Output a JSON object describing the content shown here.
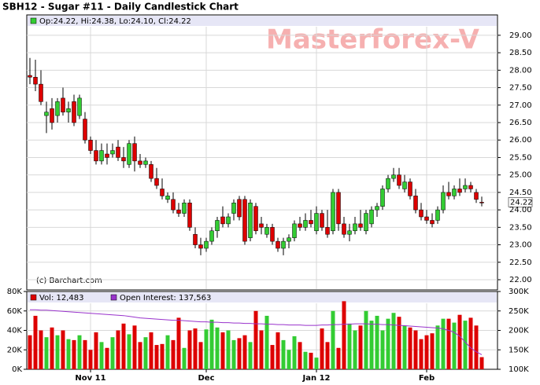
{
  "watermark": "Masterforex-V",
  "chart_data": [
    {
      "type": "candlestick",
      "title": "SBH12 - Sugar #11 - Daily Candlestick Chart",
      "ohlc_label": "Op:24.22, Hi:24.38, Lo:24.10, Cl:24.22",
      "source": "(c) Barchart.com",
      "up_color": "#33cc33",
      "down_color": "#dd0000",
      "last_price": 24.22,
      "ylim": [
        21.73,
        29.56
      ],
      "yticks": [
        {
          "value": 22,
          "label": "22.00"
        },
        {
          "value": 22.5,
          "label": "22.50"
        },
        {
          "value": 23,
          "label": "23.00"
        },
        {
          "value": 23.5,
          "label": "23.50"
        },
        {
          "value": 24,
          "label": "24.00"
        },
        {
          "value": 24.5,
          "label": "24.50"
        },
        {
          "value": 25,
          "label": "25.00"
        },
        {
          "value": 25.5,
          "label": "25.50"
        },
        {
          "value": 26,
          "label": "26.00"
        },
        {
          "value": 26.5,
          "label": "26.50"
        },
        {
          "value": 27,
          "label": "27.00"
        },
        {
          "value": 27.5,
          "label": "27.50"
        },
        {
          "value": 28,
          "label": "28.00"
        },
        {
          "value": 28.5,
          "label": "28.50"
        },
        {
          "value": 29,
          "label": "29.00"
        }
      ],
      "grid": true,
      "open": [
        27.85,
        27.8,
        27.6,
        26.7,
        26.9,
        26.7,
        27.2,
        26.8,
        27.1,
        26.7,
        26.6,
        26.0,
        25.7,
        25.4,
        25.6,
        25.6,
        25.8,
        25.5,
        25.3,
        25.9,
        25.4,
        25.3,
        25.3,
        24.9,
        24.6,
        24.3,
        24.3,
        24.0,
        23.9,
        24.2,
        23.3,
        23.0,
        22.9,
        23.1,
        23.4,
        23.8,
        23.6,
        23.9,
        24.3,
        24.3,
        23.2,
        24.1,
        23.6,
        23.3,
        23.5,
        23.1,
        22.9,
        23.1,
        23.2,
        23.6,
        23.5,
        23.7,
        23.4,
        23.9,
        23.5,
        23.4,
        24.5,
        23.6,
        23.3,
        23.4,
        23.6,
        23.4,
        23.6,
        24.0,
        24.1,
        24.6,
        24.9,
        25.0,
        24.6,
        24.8,
        24.4,
        24.0,
        23.8,
        23.7,
        23.7,
        24.0,
        24.5,
        24.4,
        24.6,
        24.6,
        24.7,
        24.5,
        24.22
      ],
      "high": [
        28.35,
        28.3,
        28.0,
        27.1,
        27.2,
        27.2,
        27.5,
        27.1,
        27.3,
        27.3,
        26.8,
        26.1,
        26.0,
        25.9,
        25.9,
        25.9,
        26.0,
        25.8,
        26.0,
        26.1,
        25.6,
        25.5,
        25.4,
        25.2,
        24.9,
        24.5,
        24.5,
        24.2,
        24.3,
        24.3,
        23.5,
        23.2,
        23.2,
        23.5,
        23.8,
        24.1,
        23.9,
        24.3,
        24.4,
        24.4,
        24.3,
        24.2,
        23.8,
        23.6,
        23.6,
        23.2,
        23.2,
        23.3,
        23.7,
        23.8,
        23.9,
        24.0,
        24.1,
        24.0,
        24.0,
        24.6,
        24.6,
        23.8,
        23.6,
        23.8,
        24.0,
        24.0,
        24.1,
        24.2,
        24.7,
        25.0,
        25.2,
        25.2,
        25.0,
        24.9,
        24.6,
        24.2,
        24.0,
        23.9,
        24.1,
        24.7,
        24.8,
        24.7,
        24.9,
        24.9,
        24.8,
        24.6,
        24.38
      ],
      "low": [
        27.6,
        27.4,
        27.0,
        26.2,
        26.3,
        26.5,
        26.7,
        26.5,
        26.4,
        26.6,
        25.9,
        25.6,
        25.3,
        25.3,
        25.3,
        25.5,
        25.4,
        25.2,
        25.2,
        25.1,
        25.2,
        25.2,
        24.8,
        24.6,
        24.3,
        24.2,
        23.9,
        23.8,
        23.8,
        23.4,
        22.9,
        22.7,
        22.8,
        23.0,
        23.2,
        23.5,
        23.5,
        23.7,
        23.7,
        23.0,
        23.1,
        23.3,
        23.3,
        23.2,
        23.0,
        22.8,
        22.7,
        22.9,
        23.1,
        23.4,
        23.4,
        23.5,
        23.3,
        23.4,
        23.2,
        23.3,
        23.4,
        23.2,
        23.1,
        23.3,
        23.4,
        23.3,
        23.5,
        23.8,
        24.0,
        24.5,
        24.8,
        24.6,
        24.5,
        24.3,
        23.9,
        23.7,
        23.6,
        23.5,
        23.6,
        23.9,
        24.3,
        24.3,
        24.4,
        24.5,
        24.5,
        24.2,
        24.1
      ],
      "close": [
        27.8,
        27.6,
        27.1,
        26.8,
        26.5,
        27.1,
        26.8,
        26.9,
        26.5,
        27.2,
        26.0,
        25.7,
        25.4,
        25.7,
        25.5,
        25.7,
        25.5,
        25.4,
        25.9,
        25.4,
        25.3,
        25.4,
        24.9,
        24.7,
        24.4,
        24.4,
        24.0,
        23.9,
        24.2,
        23.5,
        23.0,
        22.9,
        23.1,
        23.4,
        23.7,
        23.6,
        23.8,
        24.2,
        23.8,
        23.1,
        24.2,
        23.4,
        23.5,
        23.5,
        23.1,
        22.9,
        23.1,
        23.2,
        23.6,
        23.5,
        23.7,
        23.6,
        23.9,
        23.5,
        23.3,
        24.5,
        23.6,
        23.3,
        23.4,
        23.6,
        23.5,
        23.9,
        24.0,
        24.1,
        24.6,
        24.9,
        25.0,
        24.7,
        24.8,
        24.4,
        24.0,
        23.8,
        23.7,
        23.6,
        24.0,
        24.5,
        24.4,
        24.6,
        24.5,
        24.7,
        24.6,
        24.3,
        24.22
      ]
    },
    {
      "type": "bar",
      "categories": [
        null,
        null,
        null,
        null,
        null,
        null,
        null,
        null,
        null,
        null,
        null,
        "Nov 11",
        null,
        null,
        null,
        null,
        null,
        null,
        null,
        null,
        null,
        null,
        null,
        null,
        null,
        null,
        null,
        null,
        null,
        null,
        null,
        null,
        "Dec",
        null,
        null,
        null,
        null,
        null,
        null,
        null,
        null,
        null,
        null,
        null,
        null,
        null,
        null,
        null,
        null,
        null,
        null,
        null,
        "Jan 12",
        null,
        null,
        null,
        null,
        null,
        null,
        null,
        null,
        null,
        null,
        null,
        null,
        null,
        null,
        null,
        null,
        null,
        null,
        null,
        "Feb",
        null,
        null,
        null,
        null,
        null,
        null,
        null,
        null,
        null,
        null
      ],
      "ylim": [
        0,
        80000
      ],
      "yticks": [
        {
          "value": 0,
          "label": "0K"
        },
        {
          "value": 20000,
          "label": "20K"
        },
        {
          "value": 40000,
          "label": "40K"
        },
        {
          "value": 60000,
          "label": "60K"
        },
        {
          "value": 80000,
          "label": "80K"
        }
      ],
      "y2lim": [
        100000,
        300000
      ],
      "y2ticks": [
        {
          "value": 100000,
          "label": "100K"
        },
        {
          "value": 150000,
          "label": "150K"
        },
        {
          "value": 200000,
          "label": "200K"
        },
        {
          "value": 250000,
          "label": "250K"
        },
        {
          "value": 300000,
          "label": "300K"
        }
      ],
      "series": [
        {
          "name": "Vol: 12,483",
          "type": "bar",
          "color": "#dd0000",
          "values": [
            35000,
            55000,
            40000,
            33000,
            43000,
            35000,
            40000,
            31000,
            30000,
            35000,
            30000,
            20000,
            38000,
            28000,
            22000,
            33000,
            40000,
            47000,
            36000,
            45000,
            28000,
            33000,
            38000,
            25000,
            26000,
            35000,
            30000,
            53000,
            22000,
            40000,
            42000,
            28000,
            41000,
            51000,
            43000,
            38000,
            40000,
            30000,
            32000,
            35000,
            28000,
            60000,
            40000,
            55000,
            25000,
            38000,
            30000,
            20000,
            34000,
            28000,
            18000,
            17000,
            12000,
            42000,
            28000,
            60000,
            22000,
            70000,
            47000,
            40000,
            45000,
            60000,
            50000,
            55000,
            40000,
            52000,
            58000,
            54000,
            45000,
            43000,
            40000,
            31000,
            35000,
            37000,
            45000,
            52000,
            52000,
            48000,
            56000,
            50000,
            53000,
            45000,
            12483
          ]
        },
        {
          "name": "Open Interest: 137,563",
          "type": "line",
          "axis": "y2",
          "color": "#9933cc",
          "values": [
            253000,
            253000,
            252000,
            252000,
            251000,
            250000,
            249000,
            248000,
            247000,
            246000,
            245000,
            244000,
            243000,
            242000,
            241000,
            240000,
            239000,
            238000,
            236000,
            234000,
            232000,
            231000,
            230000,
            229000,
            228000,
            227000,
            226000,
            226000,
            225000,
            224000,
            223000,
            222000,
            222000,
            221000,
            221000,
            220000,
            220000,
            219000,
            219000,
            218000,
            218000,
            217000,
            217000,
            216000,
            216000,
            215000,
            215000,
            214000,
            214000,
            214000,
            213000,
            213000,
            213000,
            214000,
            214000,
            215000,
            215000,
            216000,
            216000,
            217000,
            217000,
            217000,
            216000,
            216000,
            215000,
            215000,
            214000,
            213000,
            212000,
            211000,
            210000,
            209000,
            208000,
            207000,
            206000,
            204000,
            200000,
            195000,
            185000,
            170000,
            155000,
            145000,
            137563
          ]
        }
      ]
    }
  ]
}
